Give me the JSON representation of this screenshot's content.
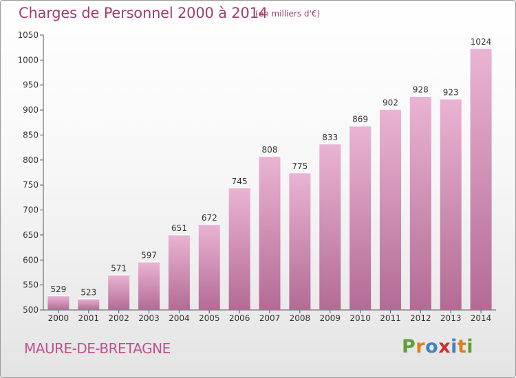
{
  "header": {
    "title": "Charges de Personnel 2000 à 2014",
    "subtitle": "(en milliers d'€)"
  },
  "footer": {
    "commune": "MAURE-DE-BRETAGNE",
    "logo_letters": [
      "P",
      "r",
      "o",
      "x",
      "i",
      "t",
      "i"
    ]
  },
  "colors": {
    "title": "#a23c72",
    "commune": "#c0508e",
    "bar_light": "#eab4d3",
    "bar_dark": "#b36b95",
    "logo": [
      "#5f9e37",
      "#e07b17",
      "#3e82c4",
      "#d32c2c",
      "#3e82c4",
      "#e07b17",
      "#5f9e37"
    ]
  },
  "chart_data": {
    "type": "bar",
    "title": "Charges de Personnel 2000 à 2014",
    "subtitle": "(en milliers d'€)",
    "categories": [
      "2000",
      "2001",
      "2002",
      "2003",
      "2004",
      "2005",
      "2006",
      "2007",
      "2008",
      "2009",
      "2010",
      "2011",
      "2012",
      "2013",
      "2014"
    ],
    "values": [
      529,
      523,
      571,
      597,
      651,
      672,
      745,
      808,
      775,
      833,
      869,
      902,
      928,
      923,
      1024
    ],
    "ylim": [
      500,
      1050
    ],
    "yticks": [
      500,
      550,
      600,
      650,
      700,
      750,
      800,
      850,
      900,
      950,
      1000,
      1050
    ],
    "grid": false,
    "data_labels": true
  }
}
